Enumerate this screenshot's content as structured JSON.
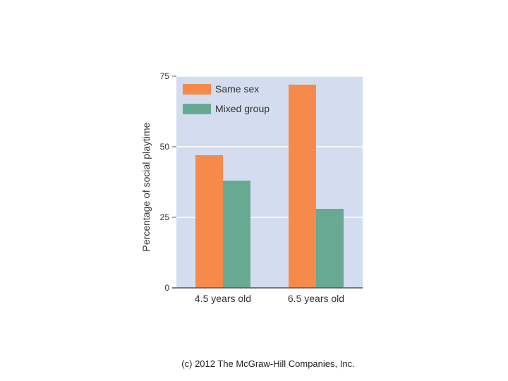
{
  "chart_data": {
    "type": "bar",
    "categories": [
      "4.5 years old",
      "6.5 years old"
    ],
    "series": [
      {
        "name": "Same sex",
        "values": [
          47,
          72
        ],
        "color": "#f58a4b"
      },
      {
        "name": "Mixed group",
        "values": [
          38,
          28
        ],
        "color": "#68a993"
      }
    ],
    "title": "",
    "xlabel": "",
    "ylabel": "Percentage of social playtime",
    "ylim": [
      0,
      75
    ],
    "yticks": [
      "0",
      "25",
      "50",
      "75"
    ],
    "grid": true,
    "legend_position": "top-left",
    "plot_background": "#d3ddef"
  },
  "copyright": "(c) 2012 The McGraw-Hill Companies, Inc."
}
